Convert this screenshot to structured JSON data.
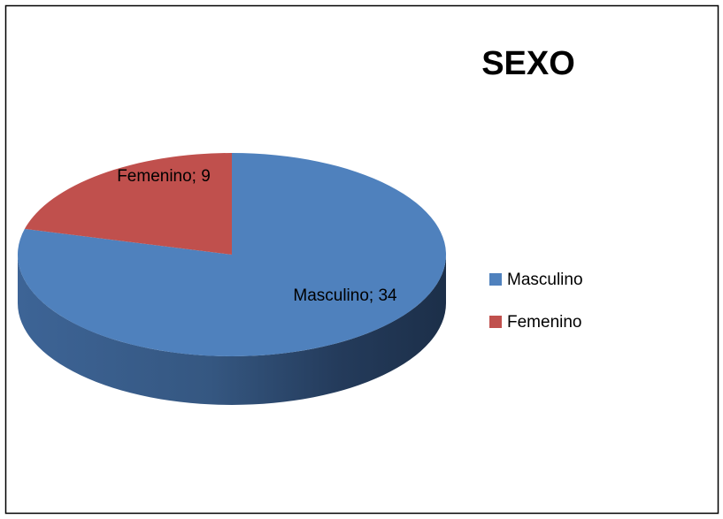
{
  "chart_data": {
    "type": "pie",
    "title": "SEXO",
    "categories": [
      "Masculino",
      "Femenino"
    ],
    "values": [
      34,
      9
    ],
    "value_labels": [
      "Masculino; 34",
      "Femenino; 9"
    ],
    "colors": [
      "#4f81bd",
      "#c0504d"
    ],
    "legend": "right"
  }
}
